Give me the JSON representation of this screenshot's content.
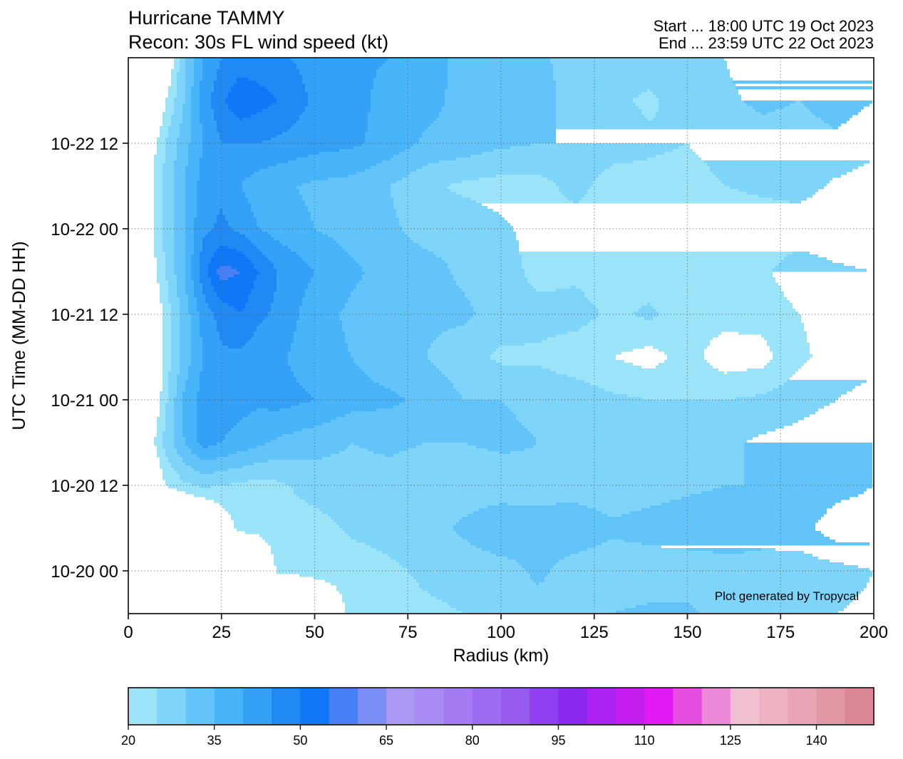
{
  "chart_data": {
    "type": "heatmap",
    "title_line1": "Hurricane TAMMY",
    "title_line2": "Recon: 30s FL wind speed (kt)",
    "start_text": "Start ... 18:00 UTC 19 Oct 2023",
    "end_text": "End ... 23:59 UTC 22 Oct 2023",
    "xlabel": "Radius (km)",
    "ylabel": "UTC Time (MM-DD HH)",
    "xlim": [
      0,
      200
    ],
    "ylim_hours_since_start": [
      0,
      78
    ],
    "xticks": [
      0,
      25,
      50,
      75,
      100,
      125,
      150,
      175,
      200
    ],
    "xtick_labels": [
      "0",
      "25",
      "50",
      "75",
      "100",
      "125",
      "150",
      "175",
      "200"
    ],
    "yticks_hours": [
      6,
      18,
      30,
      42,
      54,
      66
    ],
    "ytick_labels": [
      "10-20 00",
      "10-20 12",
      "10-21 00",
      "10-21 12",
      "10-22 00",
      "10-22 12"
    ],
    "grid": true,
    "watermark": "Plot generated by Tropycal",
    "radius": [
      0,
      5,
      10,
      15,
      20,
      25,
      30,
      35,
      40,
      50,
      60,
      70,
      80,
      90,
      100,
      110,
      120,
      130,
      140,
      150,
      160,
      170,
      180,
      190,
      200
    ],
    "hours": [
      0,
      6,
      12,
      18,
      24,
      30,
      36,
      42,
      48,
      54,
      60,
      66,
      72,
      78
    ],
    "values": [
      [
        0,
        0,
        0,
        0,
        0,
        0,
        0,
        0,
        0,
        10,
        22,
        23,
        24,
        25,
        27,
        28,
        28,
        30,
        31,
        31,
        28,
        30,
        30,
        30,
        31
      ],
      [
        0,
        0,
        0,
        0,
        0,
        0,
        0,
        10,
        21,
        22,
        22,
        24,
        26,
        27,
        28,
        31,
        28,
        27,
        27,
        27,
        28,
        29,
        27,
        28,
        30
      ],
      [
        0,
        0,
        0,
        0,
        5,
        15,
        22,
        22,
        23,
        23,
        26,
        27,
        28,
        31,
        34,
        31,
        33,
        31,
        32,
        33,
        33,
        31,
        33,
        38,
        38
      ],
      [
        0,
        8,
        20,
        24,
        26,
        25,
        24,
        23,
        24,
        27,
        28,
        28,
        27,
        27,
        27,
        29,
        28,
        27,
        28,
        29,
        30,
        30,
        31,
        33,
        35
      ],
      [
        0,
        15,
        27,
        35,
        42,
        40,
        38,
        36,
        34,
        32,
        30,
        31,
        30,
        30,
        31,
        30,
        30,
        29,
        29,
        29,
        29,
        31,
        32,
        34,
        35
      ],
      [
        0,
        10,
        24,
        36,
        42,
        43,
        42,
        41,
        42,
        40,
        37,
        36,
        34,
        30,
        30,
        29,
        28,
        26,
        25,
        25,
        25,
        26,
        28,
        30,
        32
      ],
      [
        0,
        5,
        22,
        32,
        40,
        44,
        44,
        42,
        41,
        37,
        35,
        32,
        30,
        27,
        24,
        24,
        22,
        20,
        18,
        22,
        17,
        18,
        24,
        27,
        28
      ],
      [
        0,
        10,
        22,
        32,
        42,
        47,
        50,
        46,
        44,
        37,
        34,
        32,
        31,
        31,
        28,
        27,
        27,
        24,
        26,
        22,
        22,
        22,
        25,
        27,
        25
      ],
      [
        0,
        15,
        25,
        35,
        48,
        57,
        55,
        50,
        45,
        40,
        36,
        33,
        32,
        29,
        28,
        23,
        24,
        22,
        22,
        22,
        23,
        24,
        28,
        26,
        25
      ],
      [
        0,
        16,
        27,
        35,
        44,
        46,
        44,
        40,
        38,
        35,
        33,
        31,
        28,
        28,
        26,
        23,
        22,
        23,
        22,
        22,
        22,
        22,
        22,
        21,
        20
      ],
      [
        0,
        17,
        27,
        35,
        42,
        44,
        40,
        37,
        36,
        34,
        33,
        30,
        26,
        24,
        23,
        23,
        27,
        22,
        23,
        23,
        25,
        26,
        27,
        24,
        22
      ],
      [
        0,
        15,
        25,
        33,
        40,
        45,
        45,
        45,
        44,
        42,
        41,
        38,
        34,
        33,
        31,
        30,
        30,
        28,
        26,
        25,
        27,
        28,
        28,
        29,
        27
      ],
      [
        0,
        5,
        20,
        30,
        42,
        49,
        54,
        52,
        50,
        44,
        42,
        38,
        37,
        33,
        32,
        32,
        28,
        26,
        24,
        28,
        29,
        31,
        30,
        32,
        30
      ],
      [
        0,
        0,
        12,
        30,
        40,
        45,
        47,
        47,
        46,
        43,
        41,
        40,
        38,
        33,
        33,
        31,
        28,
        28,
        28,
        29,
        30,
        33,
        33,
        33,
        30
      ]
    ],
    "colorbar": {
      "levels": [
        20,
        25,
        30,
        35,
        40,
        45,
        50,
        55,
        60,
        65,
        70,
        75,
        80,
        85,
        90,
        95,
        100,
        105,
        110,
        115,
        120,
        125,
        130,
        135,
        140,
        145,
        150
      ],
      "colors": [
        "#9be3f9",
        "#7fd4f9",
        "#63c4fa",
        "#48b5fb",
        "#34a0f6",
        "#2189f3",
        "#1077f7",
        "#4780f5",
        "#7a8ef5",
        "#aa98f2",
        "#a78bf3",
        "#a47bf2",
        "#9e6cf2",
        "#975bf0",
        "#903ff0",
        "#8c28f0",
        "#aa22f0",
        "#c61ef0",
        "#e21af3",
        "#e44fe0",
        "#ec88d8",
        "#f0c0d0",
        "#ecb2c0",
        "#e8a4b4",
        "#e297a4",
        "#dc8894"
      ],
      "ticks": [
        20,
        35,
        50,
        65,
        80,
        95,
        110,
        125,
        140
      ],
      "tick_labels": [
        "20",
        "35",
        "50",
        "65",
        "80",
        "95",
        "110",
        "125",
        "140"
      ]
    }
  }
}
